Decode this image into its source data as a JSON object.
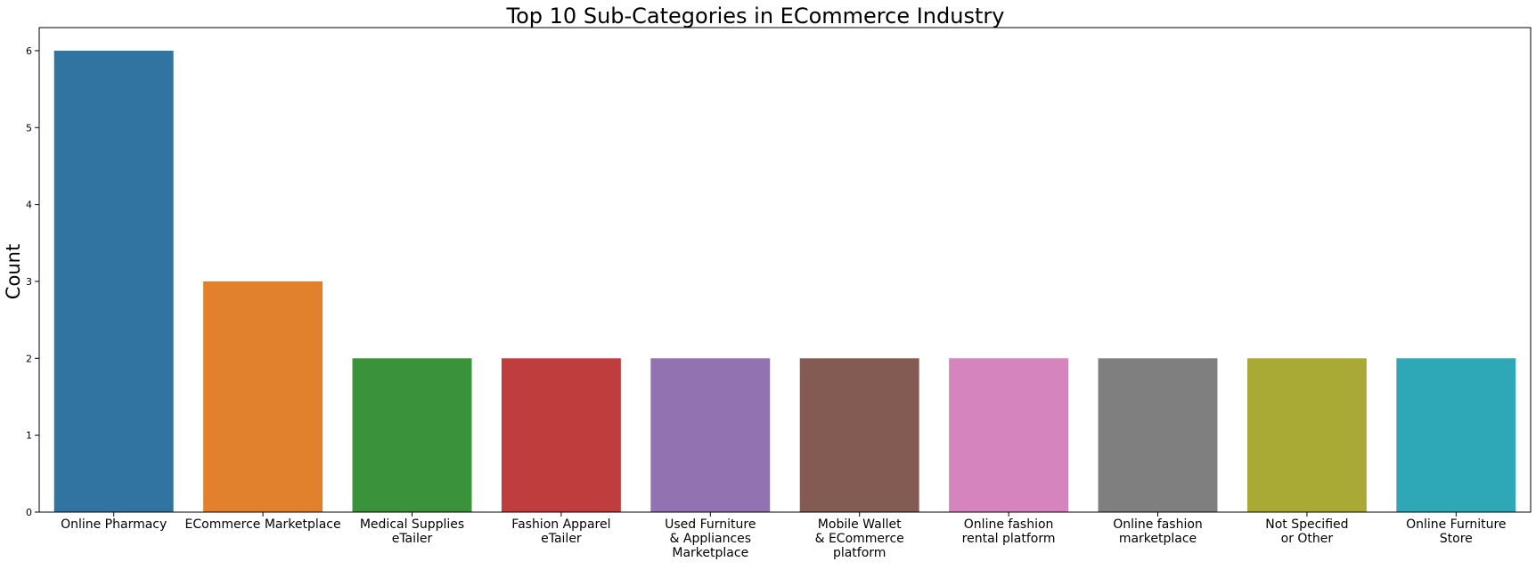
{
  "chart_data": {
    "type": "bar",
    "title": "Top 10 Sub-Categories in ECommerce Industry",
    "xlabel": "",
    "ylabel": "Count",
    "ylim": [
      0,
      6.3
    ],
    "yticks": [
      0,
      1,
      2,
      3,
      4,
      5,
      6
    ],
    "grid": false,
    "categories": [
      [
        "Online Pharmacy"
      ],
      [
        "ECommerce Marketplace"
      ],
      [
        "Medical Supplies",
        "eTailer"
      ],
      [
        "Fashion Apparel",
        "eTailer"
      ],
      [
        "Used Furniture",
        "& Appliances",
        "Marketplace"
      ],
      [
        "Mobile Wallet",
        "& ECommerce",
        "platform"
      ],
      [
        "Online fashion",
        "rental platform"
      ],
      [
        "Online fashion",
        "marketplace"
      ],
      [
        "Not Specified",
        "or Other"
      ],
      [
        "Online Furniture",
        "Store"
      ]
    ],
    "values": [
      6,
      3,
      2,
      2,
      2,
      2,
      2,
      2,
      2,
      2
    ],
    "colors": [
      "#3274a1",
      "#e1812c",
      "#3a923a",
      "#c03d3e",
      "#9372b2",
      "#845b53",
      "#d684bd",
      "#7f7f7f",
      "#a9aa35",
      "#2ea8b7"
    ]
  }
}
